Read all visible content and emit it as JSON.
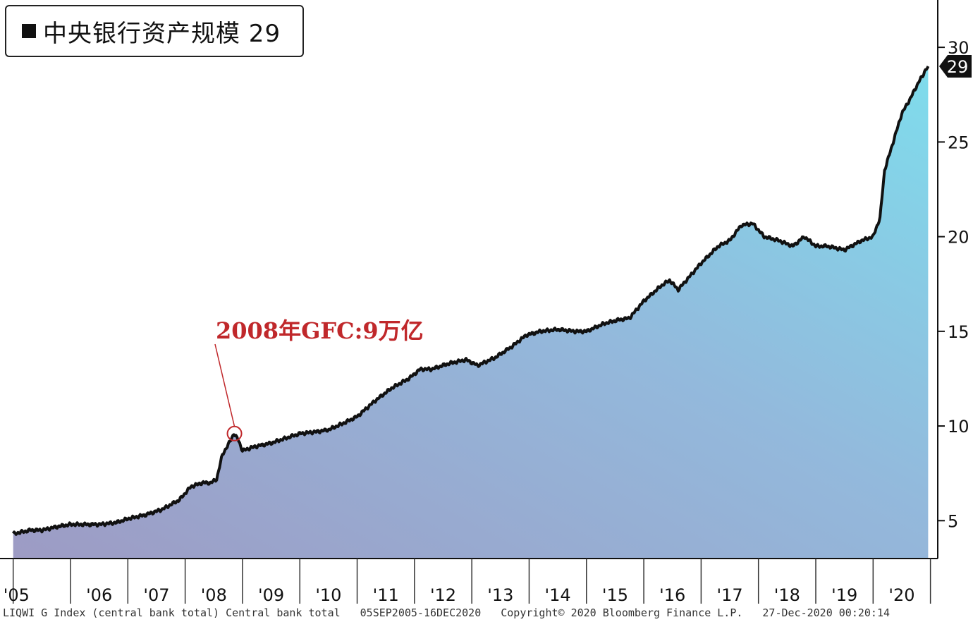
{
  "legend": {
    "label": "中央银行资产规模 29"
  },
  "annotation": {
    "text": "2008年GFC:9万亿",
    "x": "2008-11",
    "y": 9.6
  },
  "footer": {
    "index": "LIQWI G Index (central bank total) Central bank total",
    "range": "05SEP2005-16DEC2020",
    "copyright": "Copyright© 2020 Bloomberg Finance L.P.",
    "timestamp": "27-Dec-2020 00:20:14"
  },
  "colors": {
    "line": "#111111",
    "area_top": "#7fdcec",
    "area_bottom": "#9d9bc4",
    "annotation": "#c0282b"
  },
  "chart_data": {
    "type": "area",
    "title": "",
    "xlabel": "",
    "ylabel": "",
    "ylim": [
      3,
      32.5
    ],
    "y_axis_position": "right",
    "yticks": [
      5,
      10,
      15,
      20,
      25,
      30
    ],
    "xticks": [
      "'05",
      "'06",
      "'07",
      "'08",
      "'09",
      "'10",
      "'11",
      "'12",
      "'13",
      "'14",
      "'15",
      "'16",
      "'17",
      "'18",
      "'19",
      "'20"
    ],
    "end_value_label": "29",
    "series": [
      {
        "name": "中央银行资产规模",
        "x": [
          2005.0,
          2005.3,
          2005.5,
          2005.8,
          2006.0,
          2006.5,
          2006.8,
          2007.0,
          2007.3,
          2007.6,
          2007.9,
          2008.1,
          2008.3,
          2008.45,
          2008.55,
          2008.65,
          2008.75,
          2008.85,
          2008.92,
          2009.0,
          2009.2,
          2009.5,
          2009.8,
          2010.0,
          2010.3,
          2010.5,
          2010.8,
          2011.0,
          2011.3,
          2011.6,
          2011.9,
          2012.1,
          2012.3,
          2012.6,
          2012.9,
          2013.1,
          2013.4,
          2013.7,
          2013.95,
          2014.2,
          2014.5,
          2014.8,
          2015.0,
          2015.3,
          2015.55,
          2015.75,
          2016.0,
          2016.3,
          2016.45,
          2016.6,
          2016.8,
          2017.0,
          2017.3,
          2017.5,
          2017.7,
          2017.9,
          2018.1,
          2018.35,
          2018.6,
          2018.8,
          2019.0,
          2019.2,
          2019.5,
          2019.8,
          2020.0,
          2020.12,
          2020.2,
          2020.35,
          2020.5,
          2020.65,
          2020.8,
          2020.96
        ],
        "values": [
          4.3,
          4.5,
          4.5,
          4.7,
          4.8,
          4.8,
          4.9,
          5.1,
          5.3,
          5.6,
          6.1,
          6.8,
          7.0,
          7.0,
          7.2,
          8.5,
          9.0,
          9.6,
          9.3,
          8.7,
          8.9,
          9.1,
          9.4,
          9.6,
          9.7,
          9.8,
          10.2,
          10.5,
          11.3,
          12.0,
          12.5,
          13.0,
          13.0,
          13.3,
          13.5,
          13.2,
          13.6,
          14.2,
          14.8,
          15.0,
          15.1,
          15.0,
          15.0,
          15.4,
          15.6,
          15.7,
          16.6,
          17.4,
          17.7,
          17.2,
          17.9,
          18.6,
          19.5,
          19.8,
          20.6,
          20.7,
          20.0,
          19.8,
          19.5,
          20.0,
          19.5,
          19.5,
          19.3,
          19.8,
          20.0,
          21.0,
          23.5,
          25.0,
          26.5,
          27.3,
          28.2,
          29.0
        ]
      }
    ]
  }
}
